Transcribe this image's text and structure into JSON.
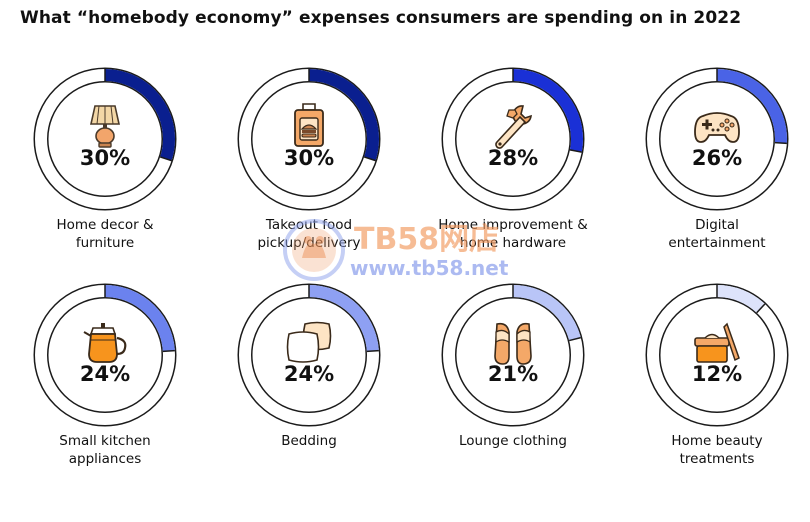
{
  "chart_data": {
    "type": "pie",
    "title": "What “homebody economy” expenses consumers are spending on in 2022",
    "unit": "%",
    "items": [
      {
        "label_lines": [
          "Home decor &",
          "furniture"
        ],
        "value": 30,
        "value_label": "30%",
        "icon": "lamp-icon",
        "color": "#0a1f8f"
      },
      {
        "label_lines": [
          "Takeout food",
          "pickup/delivery"
        ],
        "value": 30,
        "value_label": "30%",
        "icon": "takeout-bag-icon",
        "color": "#0a1f8f"
      },
      {
        "label_lines": [
          "Home improvement &",
          "home hardware"
        ],
        "value": 28,
        "value_label": "28%",
        "icon": "wrench-icon",
        "color": "#1a30d6"
      },
      {
        "label_lines": [
          "Digital",
          "entertainment"
        ],
        "value": 26,
        "value_label": "26%",
        "icon": "game-controller-icon",
        "color": "#4a63e6"
      },
      {
        "label_lines": [
          "Small kitchen",
          "appliances"
        ],
        "value": 24,
        "value_label": "24%",
        "icon": "coffee-pot-icon",
        "color": "#6b82ee"
      },
      {
        "label_lines": [
          "Bedding"
        ],
        "value": 24,
        "value_label": "24%",
        "icon": "pillows-icon",
        "color": "#8ea0f3"
      },
      {
        "label_lines": [
          "Lounge clothing"
        ],
        "value": 21,
        "value_label": "21%",
        "icon": "slippers-icon",
        "color": "#b9c5f7"
      },
      {
        "label_lines": [
          "Home beauty",
          "treatments"
        ],
        "value": 12,
        "value_label": "12%",
        "icon": "cosmetics-jar-icon",
        "color": "#dde3fb"
      }
    ]
  },
  "watermark": {
    "main_text": "TB58网店",
    "url_text": "www.tb58.net"
  }
}
